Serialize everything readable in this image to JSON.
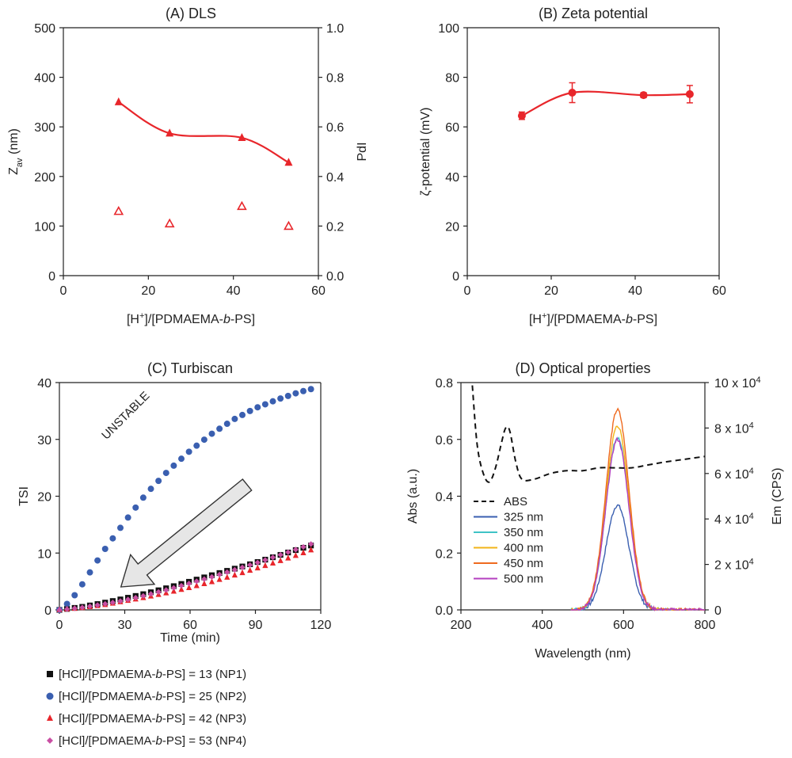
{
  "chart_data": [
    {
      "id": "A",
      "type": "scatter",
      "title": "(A) DLS",
      "xlabel": "[H⁺]/[PDMAEMA-b-PS]",
      "ylabel": "Zav (nm)",
      "y2label": "PdI",
      "xlim": [
        0,
        60
      ],
      "ylim": [
        0,
        500
      ],
      "y2lim": [
        0,
        1.0
      ],
      "xticks": [
        "0",
        "20",
        "40",
        "60"
      ],
      "yticks": [
        "0",
        "100",
        "200",
        "300",
        "400",
        "500"
      ],
      "y2ticks": [
        "0.0",
        "0.2",
        "0.4",
        "0.6",
        "0.8",
        "1.0"
      ],
      "series": [
        {
          "axis": "left",
          "marker": "triangle-filled",
          "smooth_line": true,
          "color": "#e8262b",
          "x": [
            13,
            25,
            42,
            53
          ],
          "y": [
            350,
            287,
            278,
            228
          ]
        },
        {
          "axis": "right",
          "marker": "triangle-open",
          "smooth_line": false,
          "color": "#e8262b",
          "x": [
            13,
            25,
            42,
            53
          ],
          "y": [
            0.26,
            0.21,
            0.28,
            0.2
          ]
        }
      ]
    },
    {
      "id": "B",
      "type": "scatter",
      "title": "(B) Zeta potential",
      "xlabel": "[H⁺]/[PDMAEMA-b-PS]",
      "ylabel": "ζ-potential (mV)",
      "xlim": [
        0,
        60
      ],
      "ylim": [
        0,
        100
      ],
      "xticks": [
        "0",
        "20",
        "40",
        "60"
      ],
      "yticks": [
        "0",
        "20",
        "40",
        "60",
        "80",
        "100"
      ],
      "series": [
        {
          "marker": "circle",
          "smooth_line": true,
          "color": "#e8262b",
          "x": [
            13,
            25,
            42,
            53
          ],
          "y": [
            64.5,
            73.8,
            72.8,
            73.2
          ],
          "err": [
            1.5,
            4.0,
            1.0,
            3.5
          ]
        }
      ]
    },
    {
      "id": "C",
      "type": "scatter",
      "title": "(C) Turbiscan",
      "xlabel": "Time (min)",
      "ylabel": "TSI",
      "xlim": [
        0,
        120
      ],
      "ylim": [
        0,
        40
      ],
      "xticks": [
        "0",
        "30",
        "60",
        "90",
        "120"
      ],
      "yticks": [
        "0",
        "10",
        "20",
        "30",
        "40"
      ],
      "annotation": "UNSTABLE",
      "series": [
        {
          "name": "[HCl]/[PDMAEMA-b-PS] = 13 (NP1)",
          "marker": "square",
          "color": "#111111",
          "x": [
            0,
            10,
            20,
            30,
            40,
            50,
            60,
            70,
            80,
            90,
            100,
            110,
            117
          ],
          "y": [
            0,
            0.5,
            1.2,
            2.0,
            2.9,
            3.9,
            5.0,
            6.1,
            7.2,
            8.3,
            9.5,
            10.7,
            11.5
          ]
        },
        {
          "name": "[HCl]/[PDMAEMA-b-PS] = 25 (NP2)",
          "marker": "circle",
          "color": "#3a5fb0",
          "x": [
            0,
            5,
            10,
            20,
            30,
            40,
            50,
            60,
            70,
            80,
            90,
            100,
            110,
            117
          ],
          "y": [
            0,
            1.5,
            4.2,
            10.2,
            15.5,
            20.5,
            24.5,
            28.0,
            31.0,
            33.5,
            35.5,
            37.0,
            38.3,
            39.0
          ]
        },
        {
          "name": "[HCl]/[PDMAEMA-b-PS] = 42 (NP3)",
          "marker": "triangle",
          "color": "#e8262b",
          "x": [
            0,
            10,
            20,
            30,
            40,
            50,
            60,
            70,
            80,
            90,
            100,
            110,
            117
          ],
          "y": [
            0,
            0.3,
            0.8,
            1.5,
            2.2,
            3.0,
            3.9,
            4.9,
            6.0,
            7.2,
            8.4,
            9.7,
            10.7
          ]
        },
        {
          "name": "[HCl]/[PDMAEMA-b-PS] = 53 (NP4)",
          "marker": "diamond",
          "color": "#c94fa3",
          "x": [
            0,
            10,
            20,
            30,
            40,
            50,
            60,
            70,
            80,
            90,
            100,
            110,
            117
          ],
          "y": [
            0,
            0.4,
            1.0,
            1.7,
            2.6,
            3.6,
            4.7,
            5.8,
            7.0,
            8.2,
            9.5,
            10.8,
            11.8
          ]
        }
      ]
    },
    {
      "id": "D",
      "type": "line",
      "title": "(D) Optical properties",
      "xlabel": "Wavelength (nm)",
      "ylabel": "Abs (a.u.)",
      "y2label": "Em (CPS)",
      "xlim": [
        200,
        800
      ],
      "ylim": [
        0,
        0.8
      ],
      "y2lim": [
        0,
        100000
      ],
      "xticks": [
        "200",
        "400",
        "600",
        "800"
      ],
      "yticks": [
        "0.0",
        "0.2",
        "0.4",
        "0.6",
        "0.8"
      ],
      "y2ticks": [
        "0",
        "2 x 10⁴",
        "4 x 10⁴",
        "6 x 10⁴",
        "8 x 10⁴",
        "10 x 10⁴"
      ],
      "abs_series": {
        "name": "ABS",
        "color": "#111111",
        "x": [
          228,
          240,
          255,
          270,
          285,
          300,
          310,
          320,
          335,
          350,
          380,
          420,
          460,
          500,
          540,
          580,
          620,
          660,
          700,
          750,
          800
        ],
        "y": [
          0.79,
          0.58,
          0.48,
          0.45,
          0.5,
          0.59,
          0.64,
          0.63,
          0.52,
          0.46,
          0.46,
          0.48,
          0.49,
          0.49,
          0.5,
          0.5,
          0.5,
          0.51,
          0.52,
          0.53,
          0.54
        ]
      },
      "em_series": [
        {
          "name": "325 nm",
          "color": "#3a5fb0",
          "peak": 46000,
          "x_start": 470,
          "x_end": 660
        },
        {
          "name": "350 nm",
          "color": "#3fc3c6",
          "peak": 76000,
          "x_start": 470,
          "x_end": 740
        },
        {
          "name": "400 nm",
          "color": "#f2b418",
          "peak": 81000,
          "x_start": 470,
          "x_end": 740
        },
        {
          "name": "450 nm",
          "color": "#ef6a1f",
          "peak": 88000,
          "x_start": 470,
          "x_end": 800
        },
        {
          "name": "500 nm",
          "color": "#b43fbf",
          "peak": 75000,
          "x_start": 470,
          "x_end": 800
        }
      ]
    }
  ],
  "legend_c": [
    {
      "label": "[HCl]/[PDMAEMA-b-PS] = 13 (NP1)",
      "marker": "square",
      "color": "#111111"
    },
    {
      "label": "[HCl]/[PDMAEMA-b-PS] = 25 (NP2)",
      "marker": "circle",
      "color": "#3a5fb0"
    },
    {
      "label": "[HCl]/[PDMAEMA-b-PS] = 42 (NP3)",
      "marker": "triangle",
      "color": "#e8262b"
    },
    {
      "label": "[HCl]/[PDMAEMA-b-PS] = 53 (NP4)",
      "marker": "diamond",
      "color": "#c94fa3"
    }
  ]
}
